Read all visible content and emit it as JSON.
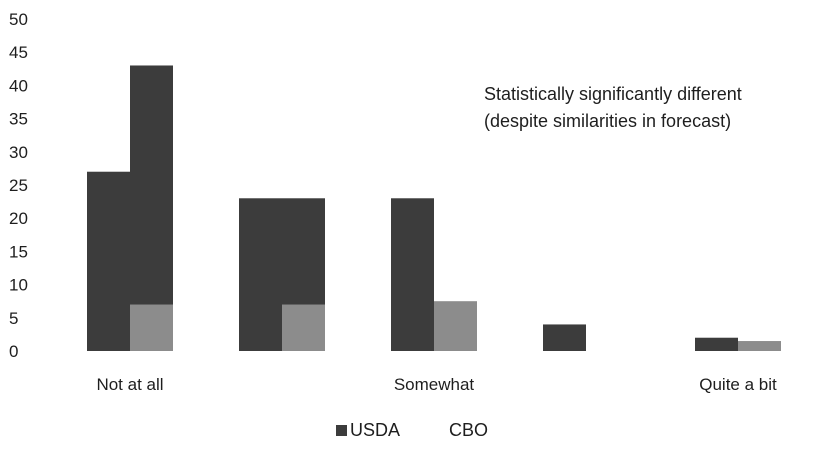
{
  "chart_data": {
    "type": "bar",
    "categories": [
      "Not at all",
      "",
      "Somewhat",
      "",
      "Quite a bit"
    ],
    "series": [
      {
        "name": "USDA",
        "values": [
          27,
          23,
          23,
          4,
          2
        ]
      },
      {
        "name": "CBO",
        "values": [
          43,
          23,
          7.5,
          0,
          1.5
        ]
      }
    ],
    "cbo_light_overlay": [
      7,
      7,
      7.5,
      0,
      1.5
    ],
    "title": "",
    "xlabel": "",
    "ylabel": "",
    "ylim": [
      0,
      50
    ],
    "yticks": [
      0,
      5,
      10,
      15,
      20,
      25,
      30,
      35,
      40,
      45,
      50
    ],
    "annotation": [
      "Statistically significantly different",
      "(despite similarities in forecast)"
    ],
    "grid": false,
    "legend_position": "bottom",
    "colors": {
      "dark": "#3c3c3c",
      "light": "#8c8c8c"
    }
  }
}
